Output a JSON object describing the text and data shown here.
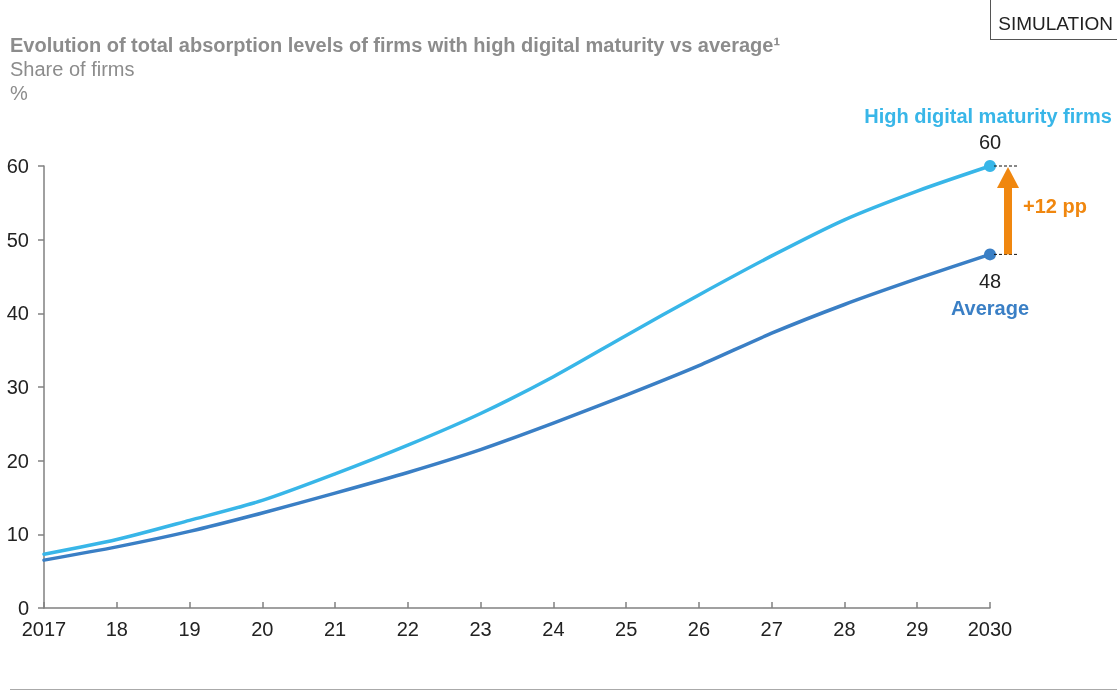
{
  "chart_data": {
    "type": "line",
    "title": "Evolution of total absorption levels of firms with high digital maturity vs average¹",
    "subtitle": "Share of firms",
    "ylabel": "%",
    "annotations": [
      "SIMULATION",
      "+12 pp"
    ],
    "categories": [
      "2017",
      "18",
      "19",
      "20",
      "21",
      "22",
      "23",
      "24",
      "25",
      "26",
      "27",
      "28",
      "29",
      "2030"
    ],
    "series": [
      {
        "name": "High digital maturity firms",
        "color": "#38b6e8",
        "values": [
          7.3,
          9.3,
          11.9,
          14.6,
          18.2,
          22.1,
          26.4,
          31.4,
          37.0,
          42.5,
          47.8,
          52.7,
          56.6,
          60
        ],
        "value_labels": [
          null,
          null,
          null,
          null,
          null,
          null,
          null,
          null,
          null,
          null,
          null,
          null,
          null,
          "60"
        ]
      },
      {
        "name": "Average",
        "color": "#3a7fc5",
        "values": [
          6.5,
          8.3,
          10.4,
          12.9,
          15.6,
          18.4,
          21.5,
          25.1,
          28.9,
          32.9,
          37.3,
          41.2,
          44.7,
          48
        ],
        "value_labels": [
          null,
          null,
          null,
          null,
          null,
          null,
          null,
          null,
          null,
          null,
          null,
          null,
          null,
          "48"
        ]
      }
    ],
    "ylim": [
      0,
      60
    ],
    "yticks": [
      0,
      10,
      20,
      30,
      40,
      50,
      60
    ],
    "grid": false,
    "legend": false,
    "line_style": "solid"
  }
}
